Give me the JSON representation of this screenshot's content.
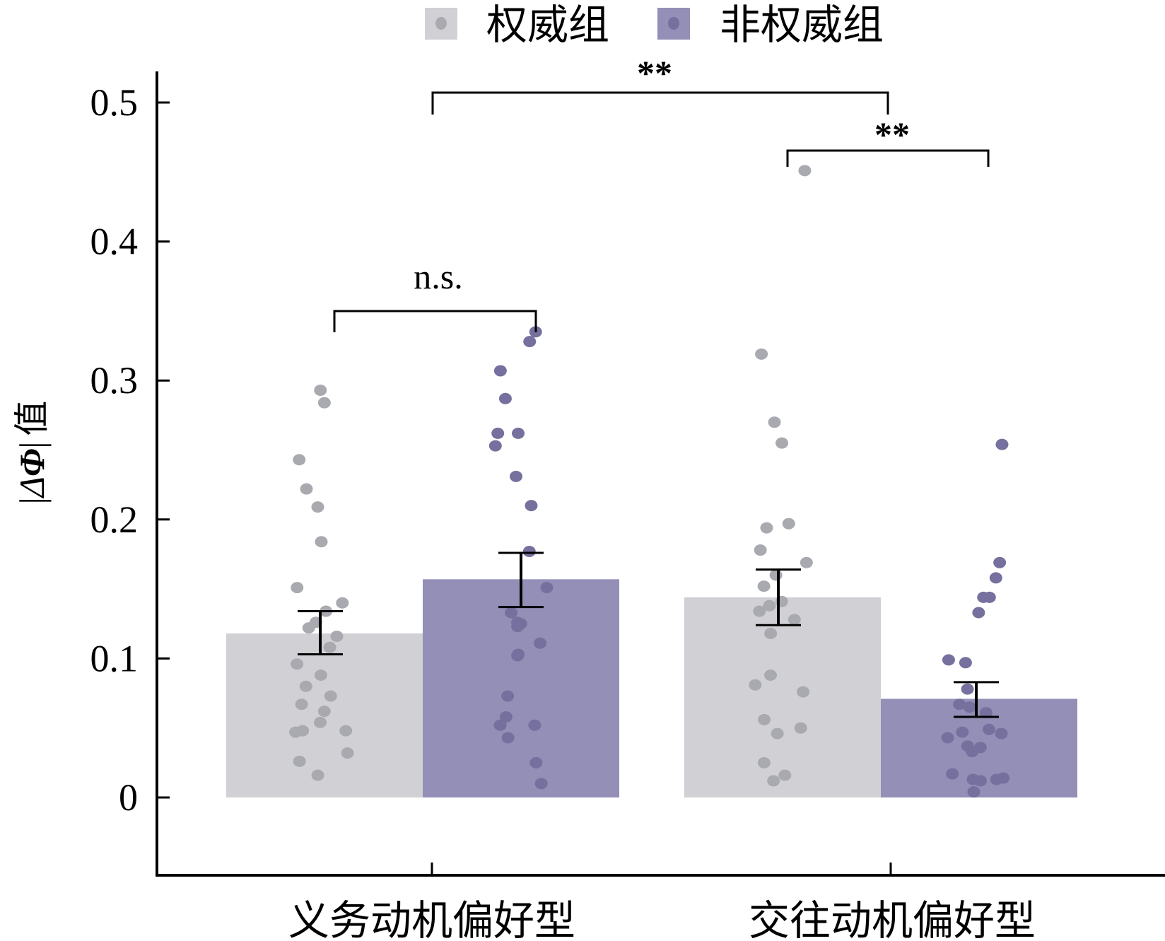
{
  "chart_data": {
    "type": "bar",
    "title": "",
    "xlabel": "",
    "ylabel": "|ΔΦ| 值",
    "ylabel_parts": {
      "bar_left": "|",
      "delta": "Δ",
      "phi": "Φ",
      "bar_right": "|",
      "suffix": "值"
    },
    "ylim": [
      0,
      0.52
    ],
    "yticks": [
      0,
      0.1,
      0.2,
      0.3,
      0.4,
      0.5
    ],
    "ytick_labels": [
      "0",
      "0.1",
      "0.2",
      "0.3",
      "0.4",
      "0.5"
    ],
    "grid": false,
    "legend_position": "top-center",
    "categories": [
      "义务动机偏好型",
      "交往动机偏好型"
    ],
    "series": [
      {
        "name": "权威组",
        "color": "#d0d0d5",
        "dot_color": "#a9a9b0",
        "values": [
          0.118,
          0.144
        ],
        "error": [
          [
            0.103,
            0.134
          ],
          [
            0.124,
            0.164
          ]
        ],
        "points": [
          [
            0.293,
            0.284,
            0.243,
            0.222,
            0.209,
            0.184,
            0.151,
            0.14,
            0.134,
            0.126,
            0.122,
            0.116,
            0.108,
            0.096,
            0.088,
            0.08,
            0.073,
            0.067,
            0.062,
            0.054,
            0.048,
            0.047,
            0.048,
            0.032,
            0.026,
            0.016
          ],
          [
            0.451,
            0.319,
            0.27,
            0.255,
            0.197,
            0.194,
            0.178,
            0.169,
            0.16,
            0.152,
            0.141,
            0.138,
            0.134,
            0.128,
            0.118,
            0.088,
            0.081,
            0.076,
            0.056,
            0.05,
            0.046,
            0.025,
            0.016,
            0.012
          ]
        ]
      },
      {
        "name": "非权威组",
        "color": "#938fb7",
        "dot_color": "#75709d",
        "values": [
          0.157,
          0.071
        ],
        "error": [
          [
            0.137,
            0.176
          ],
          [
            0.058,
            0.083
          ]
        ],
        "points": [
          [
            0.335,
            0.328,
            0.307,
            0.287,
            0.262,
            0.262,
            0.253,
            0.231,
            0.21,
            0.177,
            0.151,
            0.133,
            0.126,
            0.125,
            0.123,
            0.111,
            0.103,
            0.102,
            0.073,
            0.058,
            0.052,
            0.052,
            0.043,
            0.025,
            0.01
          ],
          [
            0.254,
            0.169,
            0.158,
            0.144,
            0.144,
            0.133,
            0.099,
            0.097,
            0.078,
            0.067,
            0.065,
            0.061,
            0.049,
            0.047,
            0.046,
            0.043,
            0.037,
            0.036,
            0.033,
            0.017,
            0.014,
            0.013,
            0.013,
            0.012,
            0.004
          ]
        ]
      }
    ],
    "annotations": [
      {
        "type": "bracket",
        "label": "n.s.",
        "from": "义务动机偏好型/权威组",
        "to": "义务动机偏好型/非权威组",
        "y": 0.36
      },
      {
        "type": "bracket",
        "label": "**",
        "from": "义务动机偏好型 (group center)",
        "to": "交往动机偏好型 (group center)",
        "y": 0.51
      },
      {
        "type": "bracket",
        "label": "**",
        "from": "交往动机偏好型/权威组",
        "to": "交往动机偏好型/非权威组",
        "y": 0.47
      }
    ]
  }
}
